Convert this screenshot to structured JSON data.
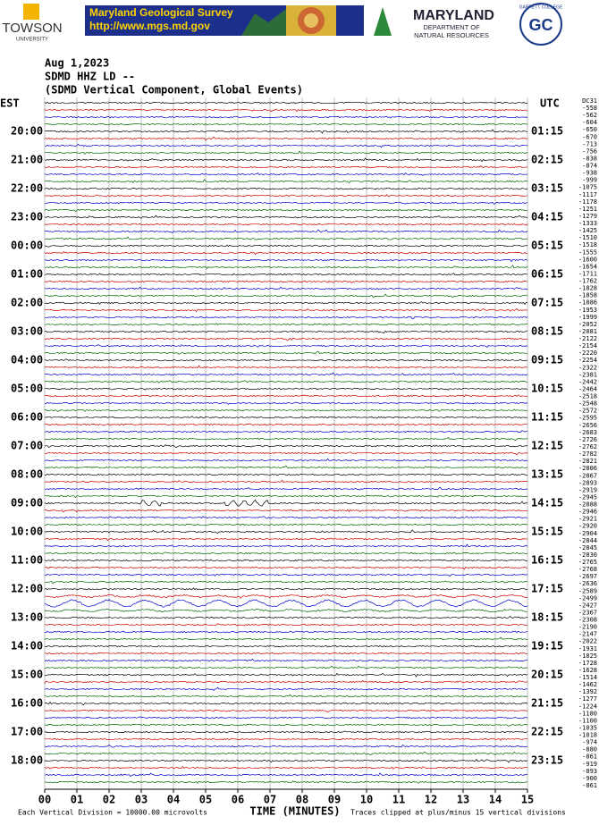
{
  "header": {
    "towson": "TOWSON",
    "towson_sub": "UNIVERSITY",
    "mgs_title": "Maryland Geological Survey",
    "mgs_url": "http://www.mgs.md.gov",
    "dnr_title": "MARYLAND",
    "dnr_sub1": "DEPARTMENT OF",
    "dnr_sub2": "NATURAL RESOURCES",
    "garrett": "GC",
    "garrett_ring": "GARRETT COLLEGE"
  },
  "plot": {
    "date": "Aug 1,2023",
    "station": "SDMD HHZ LD --",
    "description": "(SDMD Vertical Component, Global Events)",
    "left_zone": "EST",
    "right_zone": "UTC",
    "offset_header": "DC31",
    "est_labels": [
      "20:00",
      "21:00",
      "22:00",
      "23:00",
      "00:00",
      "01:00",
      "02:00",
      "03:00",
      "04:00",
      "05:00",
      "06:00",
      "07:00",
      "08:00",
      "09:00",
      "10:00",
      "11:00",
      "12:00",
      "13:00",
      "14:00",
      "15:00",
      "16:00",
      "17:00",
      "18:00"
    ],
    "utc_labels": [
      "01:15",
      "02:15",
      "03:15",
      "04:15",
      "05:15",
      "06:15",
      "07:15",
      "08:15",
      "09:15",
      "10:15",
      "11:15",
      "12:15",
      "13:15",
      "14:15",
      "15:15",
      "16:15",
      "17:15",
      "18:15",
      "19:15",
      "20:15",
      "21:15",
      "22:15",
      "23:15"
    ],
    "offsets": [
      "-558",
      "-562",
      "-604",
      "-650",
      "-670",
      "-713",
      "-756",
      "-838",
      "-874",
      "-938",
      "-999",
      "-1075",
      "-1117",
      "-1178",
      "-1251",
      "-1279",
      "-1333",
      "-1425",
      "-1510",
      "-1518",
      "-1555",
      "-1600",
      "-1654",
      "-1711",
      "-1762",
      "-1828",
      "-1858",
      "-1886",
      "-1953",
      "-1999",
      "-2052",
      "-2081",
      "-2122",
      "-2154",
      "-2220",
      "-2254",
      "-2322",
      "-2381",
      "-2442",
      "-2464",
      "-2518",
      "-2548",
      "-2572",
      "-2595",
      "-2656",
      "-2683",
      "-2726",
      "-2762",
      "-2782",
      "-2821",
      "-2806",
      "-2867",
      "-2893",
      "-2919",
      "-2945",
      "-2888",
      "-2946",
      "-2921",
      "-2920",
      "-2904",
      "-2844",
      "-2845",
      "-2830",
      "-2765",
      "-2768",
      "-2697",
      "-2636",
      "-2589",
      "-2499",
      "-2427",
      "-2367",
      "-2308",
      "-2190",
      "-2147",
      "-2022",
      "-1931",
      "-1825",
      "-1728",
      "-1628",
      "-1514",
      "-1462",
      "-1392",
      "-1277",
      "-1224",
      "-1180",
      "-1100",
      "-1035",
      "-1018",
      "-974",
      "-880",
      "-861",
      "-919",
      "-893",
      "-900",
      "-861"
    ],
    "minute_labels": [
      "00",
      "01",
      "02",
      "03",
      "04",
      "05",
      "06",
      "07",
      "08",
      "09",
      "10",
      "11",
      "12",
      "13",
      "14",
      "15"
    ],
    "x_axis_title": "TIME (MINUTES)",
    "scale_note": "Each Vertical Division = 10000.00 microvolts",
    "clip_note": "Traces clipped at plus/minus 15 vertical divisions"
  }
}
